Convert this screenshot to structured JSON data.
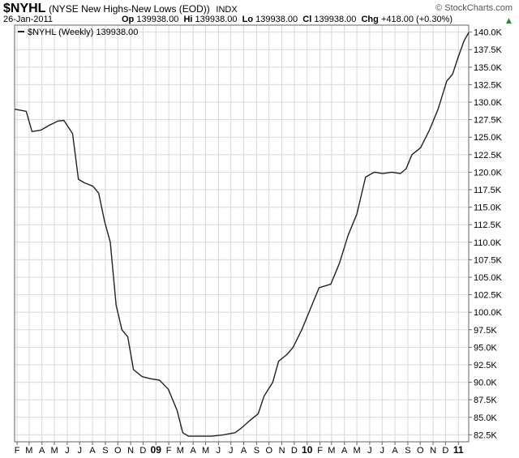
{
  "header": {
    "symbol": "$NYHL",
    "description": "(NYSE New Highs-New Lows (EOD))",
    "exchange": "INDX",
    "date": "26-Jan-2011",
    "brand": "© StockCharts.com",
    "quote": {
      "op_label": "Op",
      "op": "139938.00",
      "hi_label": "Hi",
      "hi": "139938.00",
      "lo_label": "Lo",
      "lo": "139938.00",
      "cl_label": "Cl",
      "cl": "139938.00",
      "chg_label": "Chg",
      "chg": "+418.00 (+0.30%)",
      "chg_icon": "up-triangle-icon"
    }
  },
  "colors": {
    "line": "#222222",
    "grid": "#d8d8d8",
    "frame": "#666666",
    "up": "#2a8a2a"
  },
  "chart_data": {
    "type": "line",
    "legend": "$NYHL (Weekly) 139938.00",
    "legend_position": "top-left",
    "grid": true,
    "ylim": [
      81500,
      141000
    ],
    "y_axis_side": "right",
    "yticks": [
      "82.5K",
      "85.0K",
      "87.5K",
      "90.0K",
      "92.5K",
      "95.0K",
      "97.5K",
      "100.0K",
      "102.5K",
      "105.0K",
      "107.5K",
      "110.0K",
      "112.5K",
      "115.0K",
      "117.5K",
      "120.0K",
      "122.5K",
      "125.0K",
      "127.5K",
      "130.0K",
      "132.5K",
      "135.0K",
      "137.5K",
      "140.0K"
    ],
    "xticks": [
      "F",
      "M",
      "A",
      "M",
      "J",
      "J",
      "A",
      "S",
      "O",
      "N",
      "D",
      "09",
      "F",
      "M",
      "A",
      "M",
      "J",
      "J",
      "A",
      "S",
      "O",
      "N",
      "D",
      "10",
      "F",
      "M",
      "A",
      "M",
      "J",
      "J",
      "A",
      "S",
      "O",
      "N",
      "D",
      "11"
    ],
    "xlim": [
      "2008-01-26",
      "2011-01-26"
    ],
    "series": [
      {
        "name": "$NYHL (Weekly)",
        "points": [
          [
            "2008-01-26",
            129000
          ],
          [
            "2008-02-23",
            128700
          ],
          [
            "2008-03-08",
            125800
          ],
          [
            "2008-03-29",
            126000
          ],
          [
            "2008-04-19",
            126700
          ],
          [
            "2008-05-10",
            127300
          ],
          [
            "2008-05-24",
            127400
          ],
          [
            "2008-06-14",
            125500
          ],
          [
            "2008-06-28",
            119000
          ],
          [
            "2008-07-12",
            118500
          ],
          [
            "2008-08-02",
            118000
          ],
          [
            "2008-08-16",
            117000
          ],
          [
            "2008-08-30",
            113000
          ],
          [
            "2008-09-13",
            110000
          ],
          [
            "2008-09-27",
            101000
          ],
          [
            "2008-10-11",
            97500
          ],
          [
            "2008-10-25",
            96500
          ],
          [
            "2008-11-08",
            91800
          ],
          [
            "2008-11-29",
            90800
          ],
          [
            "2008-12-20",
            90500
          ],
          [
            "2009-01-10",
            90300
          ],
          [
            "2009-01-31",
            89000
          ],
          [
            "2009-02-21",
            86000
          ],
          [
            "2009-03-07",
            82800
          ],
          [
            "2009-03-21",
            82300
          ],
          [
            "2009-04-18",
            82300
          ],
          [
            "2009-05-16",
            82300
          ],
          [
            "2009-06-13",
            82500
          ],
          [
            "2009-07-11",
            82800
          ],
          [
            "2009-07-25",
            83400
          ],
          [
            "2009-08-15",
            84500
          ],
          [
            "2009-09-05",
            85500
          ],
          [
            "2009-09-19",
            88000
          ],
          [
            "2009-10-10",
            90000
          ],
          [
            "2009-10-24",
            93000
          ],
          [
            "2009-11-14",
            94000
          ],
          [
            "2009-11-28",
            95000
          ],
          [
            "2009-12-19",
            97500
          ],
          [
            "2010-01-09",
            100500
          ],
          [
            "2010-01-30",
            103500
          ],
          [
            "2010-02-27",
            104000
          ],
          [
            "2010-03-20",
            107000
          ],
          [
            "2010-04-10",
            111000
          ],
          [
            "2010-05-01",
            114000
          ],
          [
            "2010-05-22",
            119300
          ],
          [
            "2010-06-12",
            120000
          ],
          [
            "2010-07-03",
            119800
          ],
          [
            "2010-07-24",
            120000
          ],
          [
            "2010-08-14",
            119800
          ],
          [
            "2010-08-28",
            120500
          ],
          [
            "2010-09-11",
            122500
          ],
          [
            "2010-10-02",
            123500
          ],
          [
            "2010-10-23",
            126000
          ],
          [
            "2010-11-13",
            129000
          ],
          [
            "2010-12-04",
            133000
          ],
          [
            "2010-12-18",
            134000
          ],
          [
            "2011-01-01",
            136500
          ],
          [
            "2011-01-15",
            138800
          ],
          [
            "2011-01-26",
            139938
          ]
        ]
      }
    ]
  }
}
